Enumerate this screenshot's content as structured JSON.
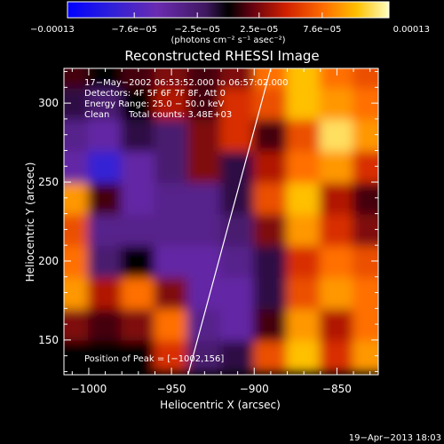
{
  "chart_data": {
    "type": "heatmap",
    "title": "Reconstructed RHESSI Image",
    "xlabel": "Heliocentric X (arcsec)",
    "ylabel": "Heliocentric Y (arcsec)",
    "xlim": [
      -1015,
      -825
    ],
    "ylim": [
      128,
      322
    ],
    "x_ticks": [
      -1000,
      -950,
      -900,
      -850
    ],
    "x_tick_labels": [
      "−1000",
      "−950",
      "−900",
      "−850"
    ],
    "y_ticks": [
      150,
      200,
      250,
      300
    ],
    "y_tick_labels": [
      "150",
      "200",
      "250",
      "300"
    ],
    "colorbar": {
      "range": [
        -0.00013,
        0.00013
      ],
      "ticks": [
        -0.00013,
        -7.6e-05,
        -2.5e-05,
        2.5e-05,
        7.6e-05,
        0.00013
      ],
      "tick_labels": [
        "−0.00013",
        "−7.6e−05",
        "−2.5e−05",
        "2.5e−05",
        "7.6e−05",
        "0.00013"
      ],
      "units": "(photons cm⁻² s⁻¹ asec⁻²)"
    },
    "annotations": [
      "17−May−2002 06:53:52.000 to 06:57:02.000",
      "Detectors: 4F 5F 6F 7F 8F, Att 0",
      "Energy Range: 25.0 − 50.0 keV",
      "Clean",
      "Total counts: 3.48E+03"
    ],
    "peak_label": "Position of Peak = [−1002,156]",
    "limb_line": {
      "x": [
        -940,
        -890
      ],
      "y": [
        128,
        322
      ]
    },
    "image": {
      "x": [
        -1010,
        -990,
        -970,
        -950,
        -930,
        -910,
        -890,
        -870,
        -850,
        -830
      ],
      "y": [
        140,
        160,
        180,
        200,
        220,
        240,
        260,
        280,
        300,
        320
      ],
      "z": [
        [
          0.5,
          0.5,
          0.5,
          0.7,
          0.4,
          0.45,
          0.75,
          0.9,
          0.7,
          0.85
        ],
        [
          0.6,
          0.55,
          0.6,
          0.8,
          0.35,
          0.3,
          0.55,
          0.85,
          0.65,
          0.8
        ],
        [
          0.85,
          0.65,
          0.8,
          0.6,
          0.3,
          0.3,
          0.45,
          0.75,
          0.85,
          0.8
        ],
        [
          0.8,
          0.4,
          0.5,
          0.3,
          0.3,
          0.35,
          0.45,
          0.7,
          0.8,
          0.75
        ],
        [
          0.75,
          0.35,
          0.35,
          0.35,
          0.35,
          0.4,
          0.6,
          0.85,
          0.7,
          0.6
        ],
        [
          0.85,
          0.55,
          0.3,
          0.35,
          0.35,
          0.45,
          0.75,
          0.9,
          0.65,
          0.55
        ],
        [
          0.3,
          0.15,
          0.3,
          0.4,
          0.6,
          0.45,
          0.65,
          0.8,
          0.85,
          0.7
        ],
        [
          0.35,
          0.3,
          0.45,
          0.4,
          0.6,
          0.7,
          0.55,
          0.75,
          0.95,
          0.85
        ],
        [
          0.45,
          0.4,
          0.5,
          0.65,
          0.55,
          0.7,
          0.75,
          0.9,
          0.85,
          0.8
        ],
        [
          0.55,
          0.5,
          0.55,
          0.6,
          0.55,
          0.6,
          0.8,
          0.9,
          0.8,
          0.75
        ]
      ]
    }
  },
  "footer": {
    "timestamp": "19−Apr−2013 18:03"
  }
}
